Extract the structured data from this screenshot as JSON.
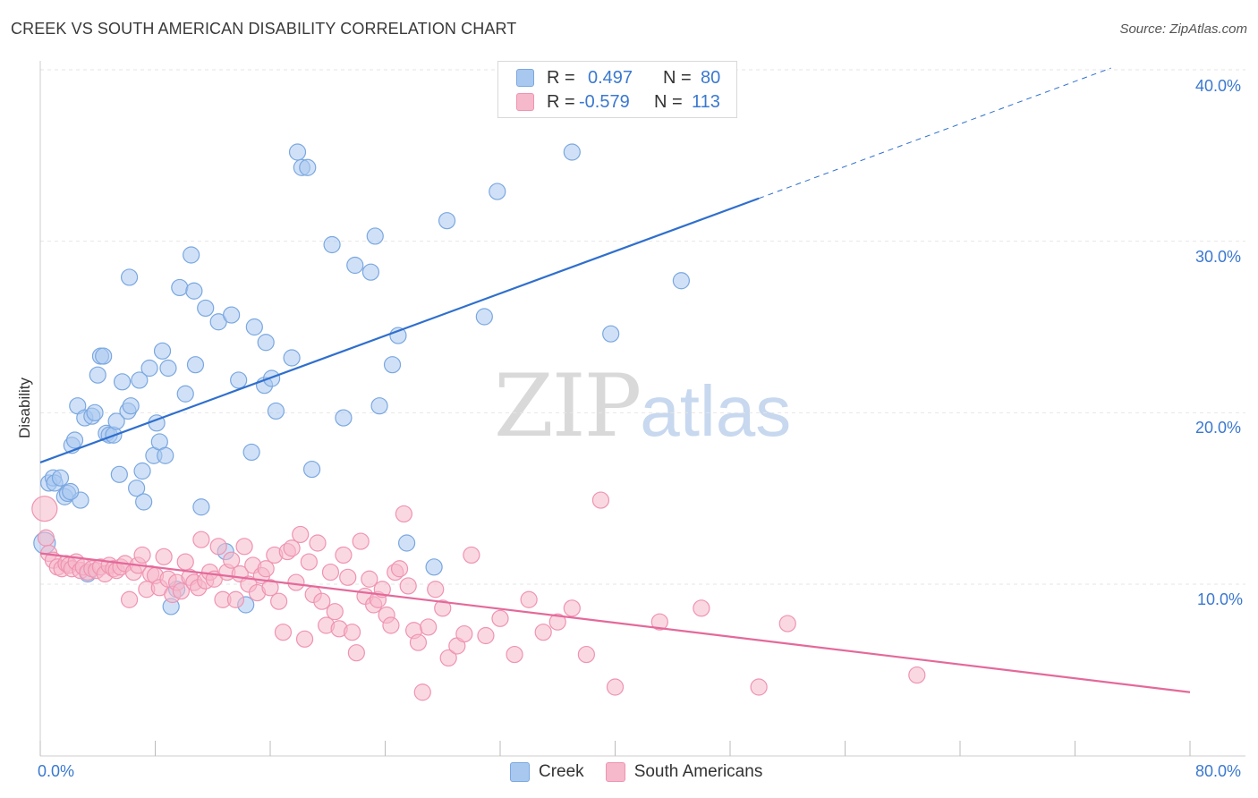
{
  "header": {
    "title": "CREEK VS SOUTH AMERICAN DISABILITY CORRELATION CHART",
    "source": "Source: ZipAtlas.com"
  },
  "watermark": {
    "zip": "ZIP",
    "atlas": "atlas"
  },
  "legend": {
    "rows": [
      {
        "r_label": "R =",
        "r_value": "0.497",
        "n_label": "N =",
        "n_value": "80",
        "color": "#a9c8f0"
      },
      {
        "r_label": "R =",
        "r_value": "-0.579",
        "n_label": "N =",
        "n_value": "113",
        "color": "#f6b8cb"
      }
    ]
  },
  "bottom_legend": {
    "creek": "Creek",
    "south_americans": "South Americans"
  },
  "colors": {
    "creek_fill": "#a9c8f0",
    "creek_stroke": "#7aa7e0",
    "creek_line": "#2f6fcd",
    "sa_fill": "#f6b8cb",
    "sa_stroke": "#ef93b1",
    "sa_line": "#e4699a",
    "tick_text": "#3a78d0",
    "grid": "#e6e6e6"
  },
  "chart_data": {
    "type": "scatter",
    "title": "CREEK VS SOUTH AMERICAN DISABILITY CORRELATION CHART",
    "xlabel": "",
    "ylabel": "Disability",
    "xlim": [
      0,
      80
    ],
    "ylim": [
      0,
      42
    ],
    "x_tick_labels": [
      "0.0%",
      "80.0%"
    ],
    "y_ticks": [
      10,
      20,
      30,
      40
    ],
    "y_tick_labels": [
      "10.0%",
      "20.0%",
      "30.0%",
      "40.0%"
    ],
    "grid": true,
    "series": [
      {
        "name": "Creek",
        "r": 0.497,
        "n": 80,
        "trend": {
          "x0": 0,
          "y0": 17.1,
          "x1": 50,
          "y1": 32.5,
          "dashed_to_x": 74.5,
          "dashed_to_y": 40.1
        },
        "points": [
          [
            0.3,
            12.4
          ],
          [
            0.6,
            15.9
          ],
          [
            0.9,
            16.2
          ],
          [
            1.0,
            15.9
          ],
          [
            1.4,
            16.2
          ],
          [
            1.7,
            15.1
          ],
          [
            1.9,
            15.3
          ],
          [
            2.2,
            18.1
          ],
          [
            2.4,
            18.4
          ],
          [
            2.6,
            20.4
          ],
          [
            2.8,
            14.9
          ],
          [
            3.1,
            19.7
          ],
          [
            3.3,
            10.6
          ],
          [
            3.6,
            19.8
          ],
          [
            3.8,
            20.0
          ],
          [
            4.0,
            22.2
          ],
          [
            4.2,
            23.3
          ],
          [
            4.4,
            23.3
          ],
          [
            4.6,
            18.8
          ],
          [
            4.8,
            18.7
          ],
          [
            5.1,
            18.7
          ],
          [
            5.3,
            19.5
          ],
          [
            5.5,
            16.4
          ],
          [
            5.7,
            21.8
          ],
          [
            6.1,
            20.1
          ],
          [
            6.3,
            20.4
          ],
          [
            6.7,
            15.6
          ],
          [
            6.9,
            21.9
          ],
          [
            7.1,
            16.6
          ],
          [
            7.2,
            14.8
          ],
          [
            7.6,
            22.6
          ],
          [
            7.9,
            17.5
          ],
          [
            8.1,
            19.4
          ],
          [
            8.3,
            18.3
          ],
          [
            8.5,
            23.6
          ],
          [
            8.7,
            17.5
          ],
          [
            8.9,
            22.6
          ],
          [
            9.1,
            8.7
          ],
          [
            9.5,
            9.7
          ],
          [
            10.1,
            21.1
          ],
          [
            10.5,
            29.2
          ],
          [
            10.8,
            22.8
          ],
          [
            11.2,
            14.5
          ],
          [
            11.5,
            26.1
          ],
          [
            12.4,
            25.3
          ],
          [
            12.9,
            11.9
          ],
          [
            13.3,
            25.7
          ],
          [
            13.8,
            21.9
          ],
          [
            14.3,
            8.8
          ],
          [
            14.7,
            17.7
          ],
          [
            14.9,
            25.0
          ],
          [
            15.6,
            21.6
          ],
          [
            15.7,
            24.1
          ],
          [
            16.1,
            22.0
          ],
          [
            16.4,
            20.1
          ],
          [
            17.5,
            23.2
          ],
          [
            6.2,
            27.9
          ],
          [
            9.7,
            27.3
          ],
          [
            10.7,
            27.1
          ],
          [
            17.9,
            35.2
          ],
          [
            18.2,
            34.3
          ],
          [
            18.6,
            34.3
          ],
          [
            18.9,
            16.7
          ],
          [
            20.3,
            29.8
          ],
          [
            21.1,
            19.7
          ],
          [
            21.9,
            28.6
          ],
          [
            23.0,
            28.2
          ],
          [
            23.3,
            30.3
          ],
          [
            23.6,
            20.4
          ],
          [
            24.5,
            22.8
          ],
          [
            24.9,
            24.5
          ],
          [
            25.5,
            12.4
          ],
          [
            27.4,
            11.0
          ],
          [
            28.3,
            31.2
          ],
          [
            30.9,
            25.6
          ],
          [
            31.8,
            32.9
          ],
          [
            37.0,
            35.2
          ],
          [
            39.7,
            24.6
          ],
          [
            44.6,
            27.7
          ],
          [
            2.1,
            15.4
          ]
        ]
      },
      {
        "name": "South Americans",
        "r": -0.579,
        "n": 113,
        "trend": {
          "x0": 0,
          "y0": 11.8,
          "x1": 80,
          "y1": 3.7
        },
        "points": [
          [
            0.3,
            14.4
          ],
          [
            0.4,
            12.7
          ],
          [
            0.6,
            11.8
          ],
          [
            0.9,
            11.4
          ],
          [
            1.2,
            11.0
          ],
          [
            1.5,
            10.9
          ],
          [
            1.8,
            11.2
          ],
          [
            2.0,
            11.1
          ],
          [
            2.2,
            10.9
          ],
          [
            2.5,
            11.3
          ],
          [
            2.8,
            10.8
          ],
          [
            3.0,
            11.0
          ],
          [
            3.3,
            10.7
          ],
          [
            3.6,
            10.9
          ],
          [
            3.9,
            10.8
          ],
          [
            4.2,
            11.0
          ],
          [
            4.5,
            10.6
          ],
          [
            4.8,
            11.1
          ],
          [
            5.1,
            10.9
          ],
          [
            5.3,
            10.8
          ],
          [
            5.6,
            11.0
          ],
          [
            5.9,
            11.2
          ],
          [
            6.2,
            9.1
          ],
          [
            6.5,
            10.7
          ],
          [
            6.8,
            11.1
          ],
          [
            7.1,
            11.7
          ],
          [
            7.4,
            9.7
          ],
          [
            7.7,
            10.6
          ],
          [
            8.0,
            10.5
          ],
          [
            8.3,
            9.8
          ],
          [
            8.6,
            11.6
          ],
          [
            8.9,
            10.3
          ],
          [
            9.2,
            9.4
          ],
          [
            9.5,
            10.1
          ],
          [
            9.8,
            9.6
          ],
          [
            10.1,
            11.3
          ],
          [
            10.4,
            10.4
          ],
          [
            10.7,
            10.1
          ],
          [
            11.0,
            9.8
          ],
          [
            11.2,
            12.6
          ],
          [
            11.5,
            10.2
          ],
          [
            11.8,
            10.7
          ],
          [
            12.1,
            10.3
          ],
          [
            12.4,
            12.2
          ],
          [
            12.7,
            9.1
          ],
          [
            13.0,
            10.7
          ],
          [
            13.3,
            11.4
          ],
          [
            13.6,
            9.1
          ],
          [
            13.9,
            10.6
          ],
          [
            14.2,
            12.2
          ],
          [
            14.5,
            10.0
          ],
          [
            14.8,
            11.1
          ],
          [
            15.1,
            9.5
          ],
          [
            15.4,
            10.5
          ],
          [
            15.7,
            10.9
          ],
          [
            16.0,
            9.8
          ],
          [
            16.3,
            11.7
          ],
          [
            16.6,
            9.0
          ],
          [
            16.9,
            7.2
          ],
          [
            17.2,
            11.9
          ],
          [
            17.5,
            12.1
          ],
          [
            17.8,
            10.1
          ],
          [
            18.1,
            12.9
          ],
          [
            18.4,
            6.8
          ],
          [
            18.7,
            11.3
          ],
          [
            19.0,
            9.4
          ],
          [
            19.3,
            12.4
          ],
          [
            19.6,
            9.0
          ],
          [
            19.9,
            7.6
          ],
          [
            20.2,
            10.7
          ],
          [
            20.5,
            8.4
          ],
          [
            20.8,
            7.4
          ],
          [
            21.1,
            11.7
          ],
          [
            21.4,
            10.4
          ],
          [
            21.7,
            7.2
          ],
          [
            22.0,
            6.0
          ],
          [
            22.3,
            12.5
          ],
          [
            22.6,
            9.3
          ],
          [
            22.9,
            10.3
          ],
          [
            23.2,
            8.8
          ],
          [
            23.5,
            9.1
          ],
          [
            23.8,
            9.7
          ],
          [
            24.1,
            8.2
          ],
          [
            24.4,
            7.6
          ],
          [
            24.7,
            10.7
          ],
          [
            25.0,
            10.9
          ],
          [
            25.3,
            14.1
          ],
          [
            25.6,
            9.9
          ],
          [
            26.0,
            7.3
          ],
          [
            26.3,
            6.6
          ],
          [
            26.6,
            3.7
          ],
          [
            27.0,
            7.5
          ],
          [
            27.5,
            9.7
          ],
          [
            28.0,
            8.6
          ],
          [
            28.4,
            5.7
          ],
          [
            29.0,
            6.4
          ],
          [
            29.5,
            7.1
          ],
          [
            30.0,
            11.7
          ],
          [
            31.0,
            7.0
          ],
          [
            32.0,
            8.0
          ],
          [
            33.0,
            5.9
          ],
          [
            34.0,
            9.1
          ],
          [
            35.0,
            7.2
          ],
          [
            36.0,
            7.8
          ],
          [
            37.0,
            8.6
          ],
          [
            38.0,
            5.9
          ],
          [
            39.0,
            14.9
          ],
          [
            40.0,
            4.0
          ],
          [
            43.1,
            7.8
          ],
          [
            46.0,
            8.6
          ],
          [
            50.0,
            4.0
          ],
          [
            52.0,
            7.7
          ],
          [
            61.0,
            4.7
          ]
        ]
      }
    ]
  }
}
